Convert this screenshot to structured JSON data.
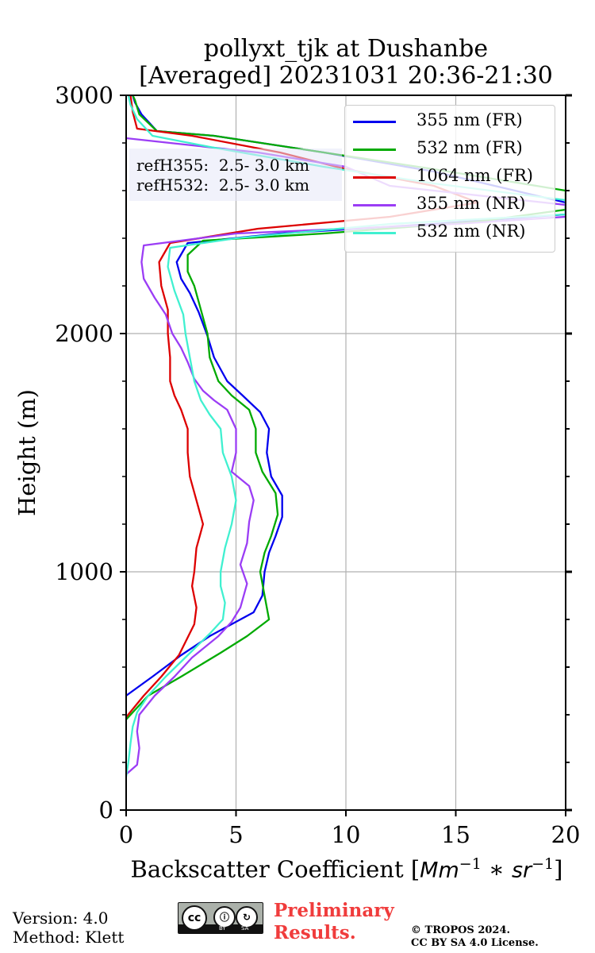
{
  "chart_data": {
    "type": "line",
    "title_line1": "pollyxt_tjk at Dushanbe",
    "title_line2": "[Averaged] 20231031 20:36-21:30",
    "xlabel_text": "Backscatter Coefficient [",
    "xlabel_math": "Mm",
    "xlabel_exp1": "−1",
    "xlabel_mid": " ∗ ",
    "xlabel_math2": "sr",
    "xlabel_exp2": "−1",
    "xlabel_close": "]",
    "ylabel": "Height (m)",
    "xlim": [
      0,
      20
    ],
    "ylim": [
      0,
      3000
    ],
    "xticks": [
      "0",
      "5",
      "10",
      "15",
      "20"
    ],
    "yticks": [
      "0",
      "1000",
      "2000",
      "3000"
    ],
    "grid": true,
    "legend_position": "top-right",
    "annotation_line1": "refH355:  2.5- 3.0 km",
    "annotation_line2": "refH532:  2.5- 3.0 km",
    "series": [
      {
        "name": "355 nm (FR)",
        "color": "#0000ee",
        "points": [
          [
            0,
            480
          ],
          [
            1.2,
            560
          ],
          [
            2.5,
            650
          ],
          [
            3.8,
            730
          ],
          [
            5,
            790
          ],
          [
            5.8,
            830
          ],
          [
            6.2,
            900
          ],
          [
            6.3,
            1000
          ],
          [
            6.5,
            1080
          ],
          [
            6.8,
            1150
          ],
          [
            7.1,
            1230
          ],
          [
            7.1,
            1320
          ],
          [
            6.6,
            1400
          ],
          [
            6.4,
            1500
          ],
          [
            6.5,
            1600
          ],
          [
            6.1,
            1670
          ],
          [
            5.3,
            1740
          ],
          [
            4.6,
            1800
          ],
          [
            4,
            1900
          ],
          [
            3.7,
            1990
          ],
          [
            3.3,
            2090
          ],
          [
            2.9,
            2170
          ],
          [
            2.5,
            2230
          ],
          [
            2.3,
            2300
          ],
          [
            2.8,
            2380
          ],
          [
            7,
            2420
          ],
          [
            14,
            2460
          ],
          [
            20,
            2500
          ],
          [
            20,
            2550
          ],
          [
            14,
            2680
          ],
          [
            9,
            2760
          ],
          [
            4,
            2830
          ],
          [
            1.4,
            2850
          ],
          [
            0.7,
            2920
          ],
          [
            0.4,
            2970
          ],
          [
            0.3,
            3000
          ]
        ]
      },
      {
        "name": "532 nm (FR)",
        "color": "#00aa00",
        "points": [
          [
            0,
            380
          ],
          [
            1,
            480
          ],
          [
            2.5,
            560
          ],
          [
            4.3,
            660
          ],
          [
            5.5,
            730
          ],
          [
            6.5,
            800
          ],
          [
            6.3,
            900
          ],
          [
            6.1,
            1000
          ],
          [
            6.3,
            1080
          ],
          [
            6.6,
            1150
          ],
          [
            6.9,
            1240
          ],
          [
            6.8,
            1330
          ],
          [
            6.2,
            1420
          ],
          [
            5.9,
            1500
          ],
          [
            5.9,
            1600
          ],
          [
            5.6,
            1680
          ],
          [
            4.8,
            1740
          ],
          [
            4.2,
            1800
          ],
          [
            3.8,
            1900
          ],
          [
            3.7,
            2000
          ],
          [
            3.4,
            2100
          ],
          [
            3.1,
            2200
          ],
          [
            2.8,
            2260
          ],
          [
            2.8,
            2330
          ],
          [
            3.5,
            2390
          ],
          [
            9,
            2420
          ],
          [
            16,
            2470
          ],
          [
            20,
            2520
          ],
          [
            20,
            2600
          ],
          [
            14,
            2690
          ],
          [
            9,
            2760
          ],
          [
            4,
            2830
          ],
          [
            1.4,
            2850
          ],
          [
            0.6,
            2920
          ],
          [
            0.4,
            2980
          ],
          [
            0.3,
            3000
          ]
        ]
      },
      {
        "name": "1064 nm (FR)",
        "color": "#dd0000",
        "points": [
          [
            0,
            390
          ],
          [
            0.8,
            480
          ],
          [
            1.6,
            560
          ],
          [
            2.4,
            650
          ],
          [
            3.1,
            780
          ],
          [
            3.2,
            850
          ],
          [
            3,
            940
          ],
          [
            3.1,
            1000
          ],
          [
            3.2,
            1100
          ],
          [
            3.5,
            1200
          ],
          [
            3.2,
            1300
          ],
          [
            2.9,
            1400
          ],
          [
            2.8,
            1500
          ],
          [
            2.8,
            1600
          ],
          [
            2.5,
            1680
          ],
          [
            2.2,
            1740
          ],
          [
            2,
            1800
          ],
          [
            2,
            1900
          ],
          [
            1.9,
            2000
          ],
          [
            1.9,
            2100
          ],
          [
            1.6,
            2200
          ],
          [
            1.5,
            2300
          ],
          [
            2,
            2380
          ],
          [
            6,
            2440
          ],
          [
            12,
            2490
          ],
          [
            16,
            2550
          ],
          [
            14,
            2620
          ],
          [
            10,
            2690
          ],
          [
            7,
            2760
          ],
          [
            3,
            2830
          ],
          [
            0.5,
            2860
          ],
          [
            0.3,
            2930
          ],
          [
            0.2,
            3000
          ]
        ]
      },
      {
        "name": "355 nm (NR)",
        "color": "#9b3df5",
        "points": [
          [
            0,
            150
          ],
          [
            0.5,
            190
          ],
          [
            0.6,
            260
          ],
          [
            0.5,
            330
          ],
          [
            0.6,
            400
          ],
          [
            1.3,
            480
          ],
          [
            2.2,
            560
          ],
          [
            3,
            640
          ],
          [
            4.2,
            730
          ],
          [
            4.8,
            790
          ],
          [
            5.2,
            850
          ],
          [
            5.5,
            950
          ],
          [
            5.2,
            1030
          ],
          [
            5.5,
            1120
          ],
          [
            5.6,
            1210
          ],
          [
            5.8,
            1300
          ],
          [
            5.6,
            1360
          ],
          [
            4.8,
            1420
          ],
          [
            5,
            1500
          ],
          [
            5,
            1600
          ],
          [
            4.6,
            1680
          ],
          [
            4,
            1720
          ],
          [
            3.5,
            1760
          ],
          [
            3.1,
            1810
          ],
          [
            2.8,
            1880
          ],
          [
            2.5,
            1940
          ],
          [
            2.1,
            2000
          ],
          [
            1.8,
            2080
          ],
          [
            1.3,
            2150
          ],
          [
            0.8,
            2230
          ],
          [
            0.7,
            2300
          ],
          [
            0.8,
            2370
          ],
          [
            5,
            2420
          ],
          [
            10,
            2440
          ],
          [
            15,
            2460
          ],
          [
            20,
            2490
          ],
          [
            20,
            2540
          ],
          [
            12,
            2620
          ],
          [
            10,
            2700
          ],
          [
            6,
            2760
          ],
          [
            2,
            2800
          ],
          [
            0,
            2820
          ]
        ]
      },
      {
        "name": "532 nm (NR)",
        "color": "#40f0d0",
        "points": [
          [
            0,
            140
          ],
          [
            0.1,
            200
          ],
          [
            0.2,
            280
          ],
          [
            0.3,
            350
          ],
          [
            0.5,
            410
          ],
          [
            1,
            480
          ],
          [
            1.8,
            560
          ],
          [
            2.8,
            650
          ],
          [
            3.8,
            740
          ],
          [
            4.4,
            800
          ],
          [
            4.5,
            870
          ],
          [
            4.3,
            940
          ],
          [
            4.3,
            1000
          ],
          [
            4.5,
            1100
          ],
          [
            4.8,
            1200
          ],
          [
            5,
            1300
          ],
          [
            4.8,
            1400
          ],
          [
            4.4,
            1500
          ],
          [
            4.3,
            1600
          ],
          [
            3.8,
            1660
          ],
          [
            3.4,
            1720
          ],
          [
            3.1,
            1800
          ],
          [
            2.9,
            1900
          ],
          [
            2.7,
            2000
          ],
          [
            2.6,
            2080
          ],
          [
            2.2,
            2180
          ],
          [
            1.9,
            2280
          ],
          [
            2,
            2360
          ],
          [
            5,
            2400
          ],
          [
            12,
            2460
          ],
          [
            20,
            2500
          ],
          [
            20,
            2560
          ],
          [
            14,
            2630
          ],
          [
            9,
            2700
          ],
          [
            4,
            2780
          ],
          [
            1.2,
            2830
          ],
          [
            0.5,
            2900
          ],
          [
            0.2,
            2960
          ],
          [
            0.1,
            3000
          ]
        ]
      }
    ]
  },
  "footer": {
    "version": "Version: 4.0",
    "method": "Method: Klett",
    "prelim_line1": "Preliminary",
    "prelim_line2": "Results.",
    "copyright_line1": "© TROPOS 2024.",
    "copyright_line2": "CC BY SA 4.0 License.",
    "badge_by": "BY",
    "badge_sa": "SA",
    "badge_cc": "cc"
  }
}
